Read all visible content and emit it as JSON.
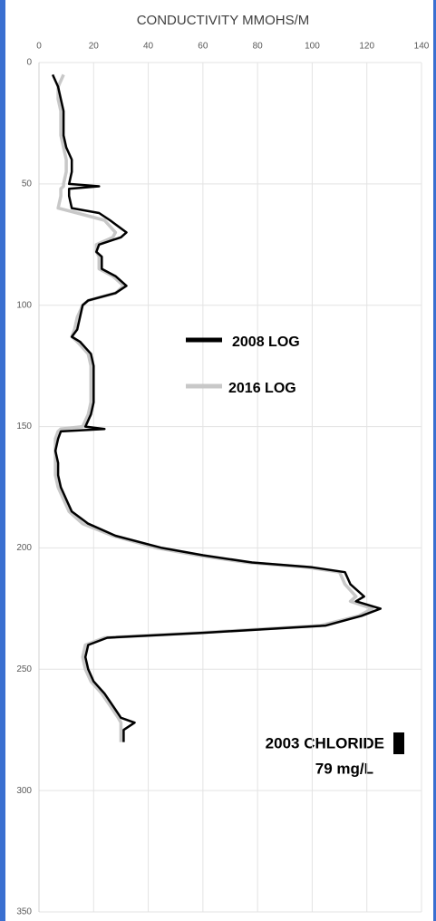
{
  "chart_data": {
    "type": "line",
    "title": "CONDUCTIVITY MMOHS/M",
    "y": [
      5,
      10,
      15,
      20,
      25,
      30,
      35,
      40,
      45,
      50,
      51,
      52,
      55,
      60,
      62,
      65,
      70,
      72,
      75,
      78,
      80,
      85,
      88,
      92,
      95,
      98,
      100,
      105,
      110,
      113,
      115,
      120,
      125,
      130,
      135,
      140,
      145,
      150,
      151,
      152,
      155,
      160,
      165,
      170,
      175,
      180,
      185,
      190,
      195,
      200,
      203,
      206,
      208,
      210,
      215,
      220,
      222,
      225,
      228,
      232,
      235,
      237,
      240,
      245,
      250,
      255,
      260,
      265,
      270,
      272,
      275,
      280
    ],
    "series": [
      {
        "name": "2016 LOG",
        "color": "#c8c8c8",
        "values": [
          9,
          7,
          7,
          8,
          8,
          8,
          9,
          10,
          10,
          9,
          9,
          8,
          8,
          7,
          14,
          24,
          28,
          27,
          21,
          21,
          22,
          22,
          27,
          31,
          28,
          18,
          16,
          14,
          13,
          12,
          14,
          18,
          19,
          19,
          19,
          19,
          18,
          16,
          8,
          7,
          6,
          6,
          6,
          6,
          7,
          9,
          11,
          16,
          27,
          43,
          58,
          76,
          98,
          110,
          112,
          116,
          114,
          122,
          117,
          103,
          58,
          24,
          17,
          16,
          17,
          19,
          23,
          26,
          29,
          30,
          30,
          30
        ]
      },
      {
        "name": "2008 LOG",
        "color": "#000000",
        "values": [
          5,
          7,
          8,
          9,
          9,
          9,
          10,
          12,
          12,
          11,
          22,
          11,
          11,
          12,
          22,
          26,
          32,
          30,
          22,
          21,
          23,
          23,
          28,
          32,
          28,
          18,
          16,
          15,
          14,
          12,
          15,
          19,
          20,
          20,
          20,
          20,
          19,
          17,
          24,
          8,
          7,
          6,
          7,
          7,
          8,
          10,
          12,
          18,
          28,
          45,
          60,
          78,
          100,
          112,
          114,
          119,
          116,
          125,
          118,
          105,
          60,
          25,
          18,
          17,
          18,
          20,
          24,
          27,
          30,
          35,
          31,
          31
        ]
      }
    ],
    "xlim": [
      0,
      140
    ],
    "xticks": [
      0,
      20,
      40,
      60,
      80,
      100,
      120,
      140
    ],
    "ylim": [
      0,
      350
    ],
    "yticks": [
      0,
      50,
      100,
      150,
      200,
      250,
      300,
      350
    ],
    "grid": true,
    "annotations": [
      "2003 CHLORIDE",
      "79 mg/L"
    ]
  }
}
